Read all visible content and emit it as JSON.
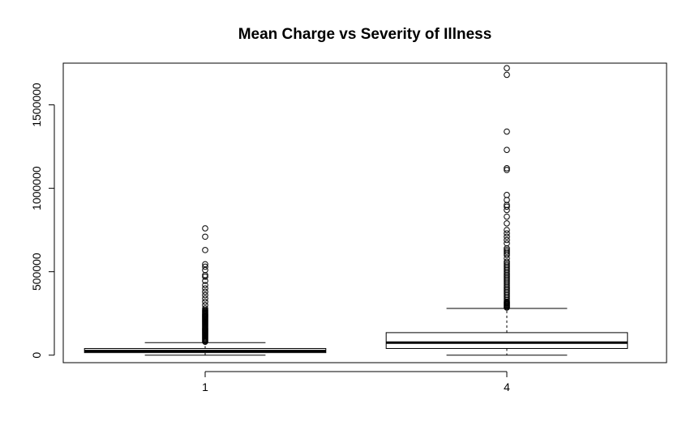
{
  "chart_data": {
    "type": "boxplot",
    "title": "Mean Charge vs Severity of Illness",
    "xlabel": "",
    "ylabel": "",
    "categories": [
      "1",
      "4"
    ],
    "ylim": [
      -45000,
      1750000
    ],
    "y_ticks": [
      0,
      500000,
      1000000,
      1500000
    ],
    "y_tick_labels": [
      "0",
      "500000",
      "1000000",
      "1500000"
    ],
    "grid": false,
    "boxes": [
      {
        "category": "1",
        "whisker_low": 0,
        "q1": 15000,
        "median": 25000,
        "q3": 40000,
        "whisker_high": 75000,
        "outliers": [
          80000,
          85000,
          90000,
          95000,
          100000,
          105000,
          110000,
          115000,
          120000,
          125000,
          130000,
          135000,
          140000,
          145000,
          150000,
          155000,
          160000,
          165000,
          170000,
          175000,
          180000,
          185000,
          190000,
          195000,
          200000,
          205000,
          210000,
          215000,
          220000,
          225000,
          230000,
          235000,
          240000,
          245000,
          250000,
          255000,
          260000,
          265000,
          270000,
          280000,
          300000,
          320000,
          340000,
          360000,
          380000,
          400000,
          420000,
          445000,
          470000,
          480000,
          510000,
          530000,
          545000,
          630000,
          710000,
          760000
        ]
      },
      {
        "category": "4",
        "whisker_low": 0,
        "q1": 40000,
        "median": 75000,
        "q3": 135000,
        "whisker_high": 280000,
        "outliers": [
          285000,
          290000,
          295000,
          300000,
          305000,
          310000,
          315000,
          320000,
          330000,
          340000,
          350000,
          360000,
          370000,
          380000,
          390000,
          400000,
          410000,
          420000,
          430000,
          440000,
          450000,
          460000,
          470000,
          480000,
          490000,
          500000,
          510000,
          520000,
          530000,
          540000,
          550000,
          560000,
          580000,
          600000,
          610000,
          620000,
          630000,
          640000,
          670000,
          690000,
          710000,
          730000,
          750000,
          790000,
          830000,
          870000,
          890000,
          900000,
          930000,
          960000,
          1110000,
          1120000,
          1230000,
          1340000,
          1680000,
          1720000
        ]
      }
    ]
  }
}
